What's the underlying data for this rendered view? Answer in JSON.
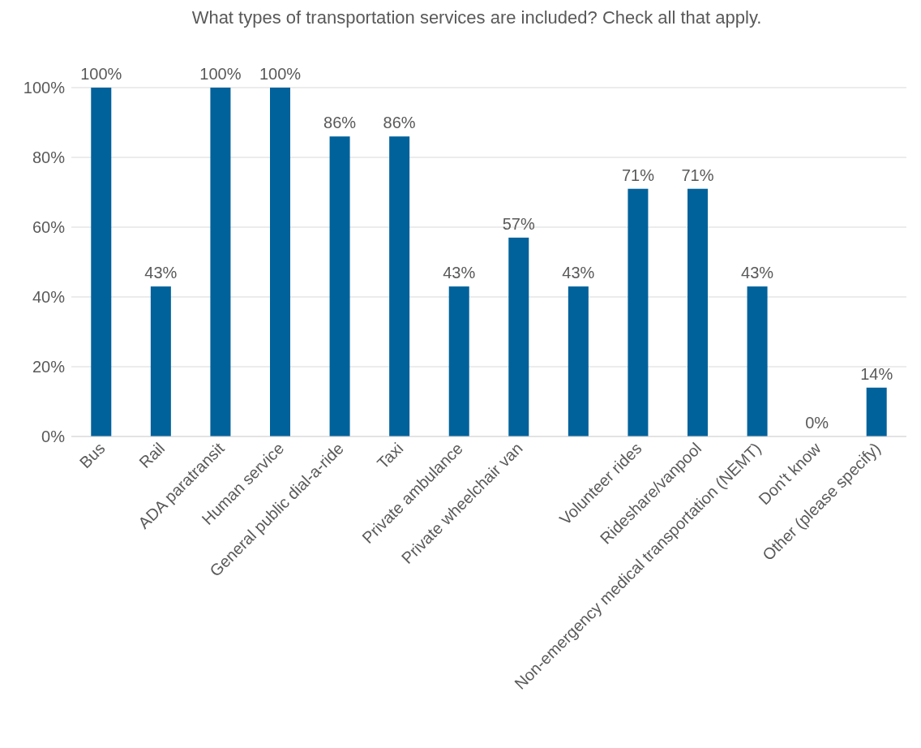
{
  "chart_data": {
    "type": "bar",
    "title": "What types of transportation services are included? Check all that apply.",
    "categories": [
      "Bus",
      "Rail",
      "ADA paratransit",
      "Human service",
      "General public dial-a-ride",
      "Taxi",
      "Private ambulance",
      "Private wheelchair van",
      null,
      "Volunteer rides",
      "Rideshare/vanpool",
      "Non-emergency medical transportation (NEMT)",
      "Don't know",
      "Other (please specify)"
    ],
    "values": [
      100,
      43,
      100,
      100,
      86,
      86,
      43,
      57,
      43,
      71,
      71,
      43,
      0,
      14
    ],
    "value_labels": [
      "100%",
      "43%",
      "100%",
      "100%",
      "86%",
      "86%",
      "43%",
      "57%",
      "43%",
      "71%",
      "71%",
      "43%",
      "0%",
      "14%"
    ],
    "color": "#00629b",
    "ylim": [
      0,
      100
    ],
    "yticks": [
      {
        "value": 0,
        "label": "0%"
      },
      {
        "value": 20,
        "label": "20%"
      },
      {
        "value": 40,
        "label": "40%"
      },
      {
        "value": 60,
        "label": "60%"
      },
      {
        "value": 80,
        "label": "80%"
      },
      {
        "value": 100,
        "label": "100%"
      }
    ],
    "grid": "y",
    "legend": false
  }
}
